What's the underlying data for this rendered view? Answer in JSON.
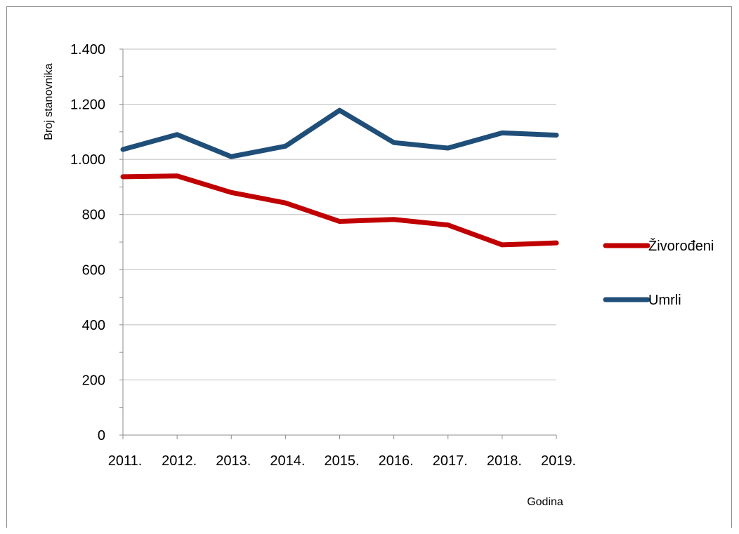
{
  "chart_data": {
    "type": "line",
    "title": "",
    "xlabel": "Godina",
    "ylabel": "Broj stanovnika",
    "categories": [
      "2011.",
      "2012.",
      "2013.",
      "2014.",
      "2015.",
      "2016.",
      "2017.",
      "2018.",
      "2019."
    ],
    "ylim": [
      0,
      1400
    ],
    "yticks": [
      0,
      200,
      400,
      600,
      800,
      1000,
      1200,
      1400
    ],
    "ytick_labels": [
      "0",
      "200",
      "400",
      "600",
      "800",
      "1.000",
      "1.200",
      "1.400"
    ],
    "grid": true,
    "legend_position": "right",
    "series": [
      {
        "name": "Živorođeni",
        "color": "#C00000",
        "values": [
          937,
          940,
          880,
          842,
          775,
          782,
          762,
          690,
          697
        ]
      },
      {
        "name": "Umrli",
        "color": "#1F4E79",
        "values": [
          1036,
          1090,
          1010,
          1048,
          1178,
          1061,
          1041,
          1096,
          1088
        ]
      }
    ]
  }
}
